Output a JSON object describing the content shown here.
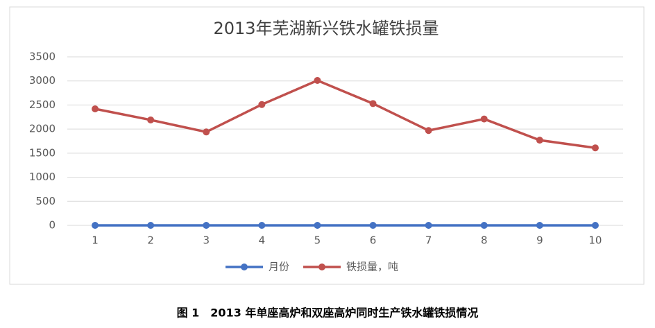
{
  "chart_data": {
    "type": "line",
    "title": "2013年芜湖新兴铁水罐铁损量",
    "categories": [
      "1",
      "2",
      "3",
      "4",
      "5",
      "6",
      "7",
      "8",
      "9",
      "10"
    ],
    "series": [
      {
        "name": "月份",
        "color": "#4472c4",
        "values": [
          0,
          0,
          0,
          0,
          0,
          0,
          0,
          0,
          0,
          0
        ]
      },
      {
        "name": "铁损量，吨",
        "color": "#c0504d",
        "values": [
          2420,
          2190,
          1940,
          2510,
          3010,
          2530,
          1970,
          2210,
          1770,
          1610
        ]
      }
    ],
    "ylim": [
      0,
      3500
    ],
    "yticks": [
      0,
      500,
      1000,
      1500,
      2000,
      2500,
      3000,
      3500
    ],
    "grid": true,
    "legend": "bottom"
  },
  "caption": "图 1　2013 年单座高炉和双座高炉同时生产铁水罐铁损情况"
}
